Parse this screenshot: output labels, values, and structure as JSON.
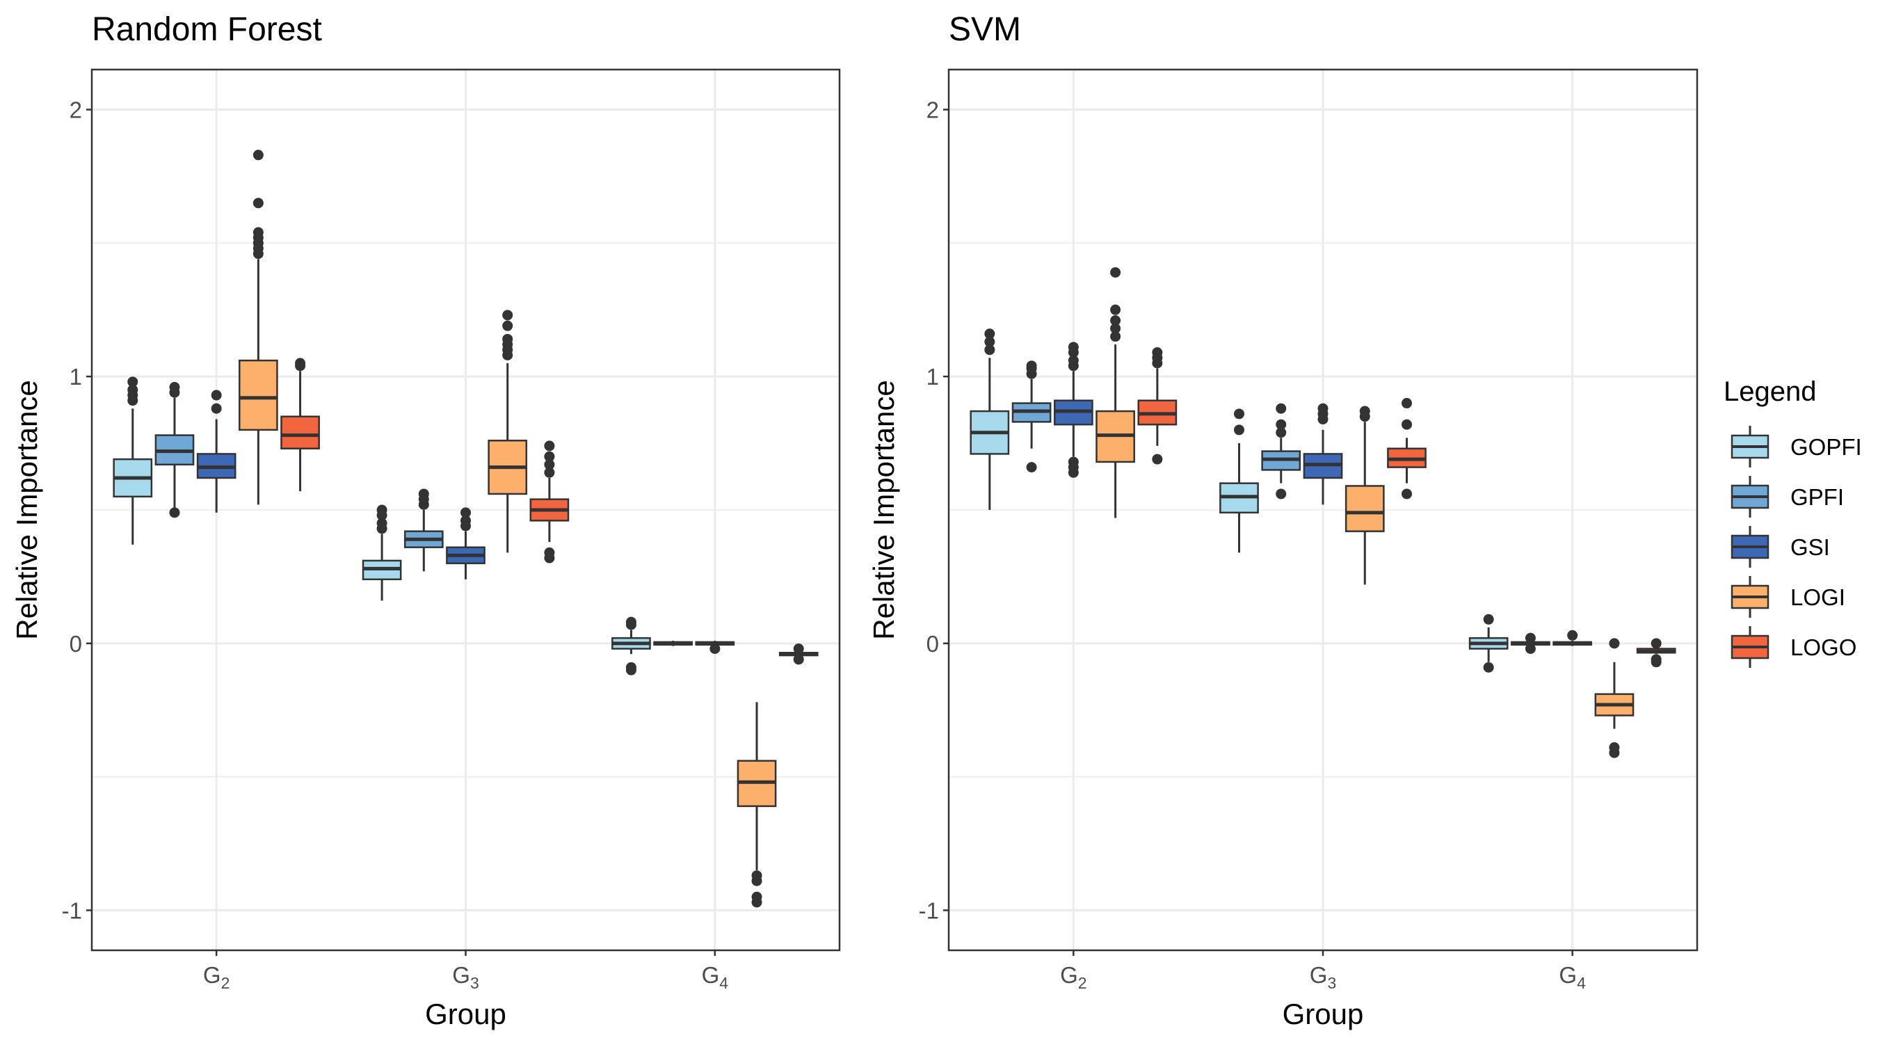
{
  "legend": {
    "title": "Legend",
    "items": [
      {
        "label": "GOPFI",
        "color": "#A6D9EB"
      },
      {
        "label": "GPFI",
        "color": "#6FA8D7"
      },
      {
        "label": "GSI",
        "color": "#3C68B6"
      },
      {
        "label": "LOGI",
        "color": "#FDB06B"
      },
      {
        "label": "LOGO",
        "color": "#F1653F"
      }
    ]
  },
  "chart_data": [
    {
      "type": "boxplot",
      "title": "Random Forest",
      "xlabel": "Group",
      "ylabel": "Relative Importance",
      "ylim": [
        -1.15,
        2.15
      ],
      "yticks": [
        -1,
        0,
        1,
        2
      ],
      "ytick_labels": [
        "-1",
        "0",
        "1",
        "2"
      ],
      "grid": true,
      "legend_position": "right",
      "categories": [
        {
          "base": "G",
          "sub": "2"
        },
        {
          "base": "G",
          "sub": "3"
        },
        {
          "base": "G",
          "sub": "4"
        }
      ],
      "series": [
        {
          "name": "GOPFI",
          "color": "#A6D9EB",
          "boxes": [
            {
              "whisker_low": 0.37,
              "q1": 0.55,
              "median": 0.62,
              "q3": 0.69,
              "whisker_high": 0.88,
              "outliers": [
                0.91,
                0.93,
                0.95,
                0.98
              ]
            },
            {
              "whisker_low": 0.16,
              "q1": 0.24,
              "median": 0.28,
              "q3": 0.31,
              "whisker_high": 0.41,
              "outliers": [
                0.43,
                0.45,
                0.48,
                0.5
              ]
            },
            {
              "whisker_low": -0.04,
              "q1": -0.02,
              "median": 0.0,
              "q3": 0.02,
              "whisker_high": 0.05,
              "outliers": [
                -0.1,
                -0.09,
                0.07,
                0.08
              ]
            }
          ]
        },
        {
          "name": "GPFI",
          "color": "#6FA8D7",
          "boxes": [
            {
              "whisker_low": 0.5,
              "q1": 0.67,
              "median": 0.72,
              "q3": 0.78,
              "whisker_high": 0.92,
              "outliers": [
                0.49,
                0.94,
                0.96
              ]
            },
            {
              "whisker_low": 0.27,
              "q1": 0.36,
              "median": 0.39,
              "q3": 0.42,
              "whisker_high": 0.5,
              "outliers": [
                0.52,
                0.54,
                0.56
              ]
            },
            {
              "whisker_low": -0.01,
              "q1": -0.005,
              "median": 0.0,
              "q3": 0.005,
              "whisker_high": 0.01,
              "outliers": []
            }
          ]
        },
        {
          "name": "GSI",
          "color": "#3C68B6",
          "boxes": [
            {
              "whisker_low": 0.49,
              "q1": 0.62,
              "median": 0.66,
              "q3": 0.71,
              "whisker_high": 0.84,
              "outliers": [
                0.88,
                0.93
              ]
            },
            {
              "whisker_low": 0.24,
              "q1": 0.3,
              "median": 0.33,
              "q3": 0.36,
              "whisker_high": 0.42,
              "outliers": [
                0.44,
                0.46,
                0.49
              ]
            },
            {
              "whisker_low": -0.01,
              "q1": -0.005,
              "median": 0.0,
              "q3": 0.005,
              "whisker_high": 0.01,
              "outliers": [
                -0.02
              ]
            }
          ]
        },
        {
          "name": "LOGI",
          "color": "#FDB06B",
          "boxes": [
            {
              "whisker_low": 0.52,
              "q1": 0.8,
              "median": 0.92,
              "q3": 1.06,
              "whisker_high": 1.44,
              "outliers": [
                1.46,
                1.48,
                1.5,
                1.52,
                1.54,
                1.65,
                1.83
              ]
            },
            {
              "whisker_low": 0.34,
              "q1": 0.56,
              "median": 0.66,
              "q3": 0.76,
              "whisker_high": 1.05,
              "outliers": [
                1.08,
                1.1,
                1.12,
                1.14,
                1.19,
                1.23
              ]
            },
            {
              "whisker_low": -0.85,
              "q1": -0.61,
              "median": -0.52,
              "q3": -0.44,
              "whisker_high": -0.22,
              "outliers": [
                -0.87,
                -0.89,
                -0.95,
                -0.97
              ]
            }
          ]
        },
        {
          "name": "LOGO",
          "color": "#F1653F",
          "boxes": [
            {
              "whisker_low": 0.57,
              "q1": 0.73,
              "median": 0.78,
              "q3": 0.85,
              "whisker_high": 1.02,
              "outliers": [
                1.04,
                1.05
              ]
            },
            {
              "whisker_low": 0.38,
              "q1": 0.46,
              "median": 0.5,
              "q3": 0.54,
              "whisker_high": 0.62,
              "outliers": [
                0.32,
                0.34,
                0.64,
                0.67,
                0.7,
                0.74
              ]
            },
            {
              "whisker_low": -0.05,
              "q1": -0.045,
              "median": -0.04,
              "q3": -0.035,
              "whisker_high": -0.03,
              "outliers": [
                -0.06,
                -0.02
              ]
            }
          ]
        }
      ]
    },
    {
      "type": "boxplot",
      "title": "SVM",
      "xlabel": "Group",
      "ylabel": "Relative Importance",
      "ylim": [
        -1.15,
        2.15
      ],
      "yticks": [
        -1,
        0,
        1,
        2
      ],
      "ytick_labels": [
        "-1",
        "0",
        "1",
        "2"
      ],
      "grid": true,
      "legend_position": "right",
      "categories": [
        {
          "base": "G",
          "sub": "2"
        },
        {
          "base": "G",
          "sub": "3"
        },
        {
          "base": "G",
          "sub": "4"
        }
      ],
      "series": [
        {
          "name": "GOPFI",
          "color": "#A6D9EB",
          "boxes": [
            {
              "whisker_low": 0.5,
              "q1": 0.71,
              "median": 0.79,
              "q3": 0.87,
              "whisker_high": 1.07,
              "outliers": [
                1.1,
                1.13,
                1.16
              ]
            },
            {
              "whisker_low": 0.34,
              "q1": 0.49,
              "median": 0.55,
              "q3": 0.6,
              "whisker_high": 0.75,
              "outliers": [
                0.8,
                0.86
              ]
            },
            {
              "whisker_low": -0.07,
              "q1": -0.02,
              "median": 0.0,
              "q3": 0.02,
              "whisker_high": 0.06,
              "outliers": [
                -0.09,
                0.09
              ]
            }
          ]
        },
        {
          "name": "GPFI",
          "color": "#6FA8D7",
          "boxes": [
            {
              "whisker_low": 0.73,
              "q1": 0.83,
              "median": 0.87,
              "q3": 0.9,
              "whisker_high": 0.99,
              "outliers": [
                0.66,
                1.01,
                1.03,
                1.04
              ]
            },
            {
              "whisker_low": 0.6,
              "q1": 0.65,
              "median": 0.69,
              "q3": 0.72,
              "whisker_high": 0.77,
              "outliers": [
                0.56,
                0.79,
                0.82,
                0.88
              ]
            },
            {
              "whisker_low": -0.01,
              "q1": -0.005,
              "median": 0.0,
              "q3": 0.005,
              "whisker_high": 0.01,
              "outliers": [
                -0.02,
                0.02
              ]
            }
          ]
        },
        {
          "name": "GSI",
          "color": "#3C68B6",
          "boxes": [
            {
              "whisker_low": 0.7,
              "q1": 0.82,
              "median": 0.87,
              "q3": 0.91,
              "whisker_high": 1.02,
              "outliers": [
                0.64,
                0.66,
                0.68,
                1.04,
                1.06,
                1.09,
                1.11
              ]
            },
            {
              "whisker_low": 0.52,
              "q1": 0.62,
              "median": 0.67,
              "q3": 0.71,
              "whisker_high": 0.8,
              "outliers": [
                0.84,
                0.86,
                0.88
              ]
            },
            {
              "whisker_low": -0.01,
              "q1": -0.005,
              "median": 0.0,
              "q3": 0.005,
              "whisker_high": 0.01,
              "outliers": [
                0.03
              ]
            }
          ]
        },
        {
          "name": "LOGI",
          "color": "#FDB06B",
          "boxes": [
            {
              "whisker_low": 0.47,
              "q1": 0.68,
              "median": 0.78,
              "q3": 0.87,
              "whisker_high": 1.12,
              "outliers": [
                1.15,
                1.18,
                1.21,
                1.25,
                1.39
              ]
            },
            {
              "whisker_low": 0.22,
              "q1": 0.42,
              "median": 0.49,
              "q3": 0.59,
              "whisker_high": 0.83,
              "outliers": [
                0.85,
                0.87
              ]
            },
            {
              "whisker_low": -0.32,
              "q1": -0.27,
              "median": -0.23,
              "q3": -0.19,
              "whisker_high": -0.07,
              "outliers": [
                -0.39,
                -0.41,
                0.0
              ]
            }
          ]
        },
        {
          "name": "LOGO",
          "color": "#F1653F",
          "boxes": [
            {
              "whisker_low": 0.74,
              "q1": 0.82,
              "median": 0.86,
              "q3": 0.91,
              "whisker_high": 1.03,
              "outliers": [
                0.69,
                1.05,
                1.07,
                1.09
              ]
            },
            {
              "whisker_low": 0.6,
              "q1": 0.66,
              "median": 0.69,
              "q3": 0.73,
              "whisker_high": 0.77,
              "outliers": [
                0.56,
                0.82,
                0.9
              ]
            },
            {
              "whisker_low": -0.04,
              "q1": -0.035,
              "median": -0.03,
              "q3": -0.02,
              "whisker_high": -0.01,
              "outliers": [
                -0.07,
                -0.06,
                0.0
              ]
            }
          ]
        }
      ]
    }
  ]
}
